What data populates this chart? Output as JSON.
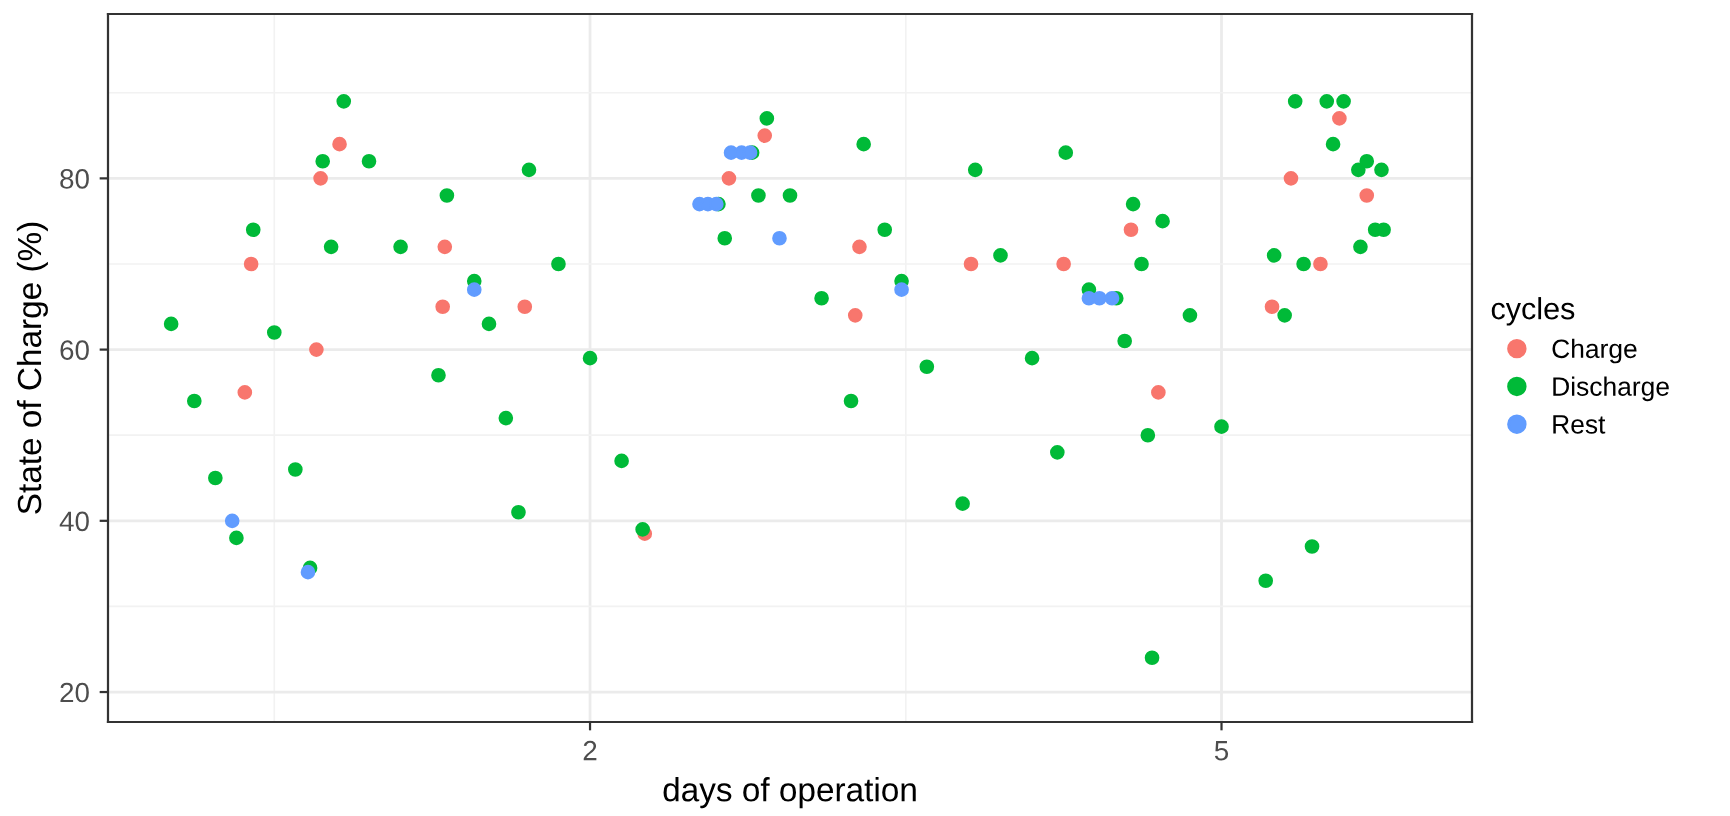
{
  "chart_data": {
    "type": "scatter",
    "xlabel": "days of operation",
    "ylabel": "State of Charge (%)",
    "legend_title": "cycles",
    "legend": "right",
    "grid": true,
    "marker": "circle",
    "xlim": [
      -0.29,
      6.19
    ],
    "xticks": [
      2,
      5
    ],
    "ylim": [
      16.5,
      99.2
    ],
    "yticks": [
      20,
      40,
      60,
      80
    ],
    "series": [
      {
        "name": "Charge",
        "color": "#f8766d",
        "x": [
          0.36,
          0.39,
          0.7,
          0.72,
          0.81,
          1.3,
          1.31,
          1.69,
          2.26,
          2.66,
          2.83,
          3.26,
          3.28,
          3.81,
          4.25,
          4.57,
          4.7,
          5.24,
          5.33,
          5.47,
          5.56,
          5.69
        ],
        "values": [
          55,
          70,
          60,
          80,
          84,
          65,
          72,
          65,
          38.5,
          80,
          85,
          64,
          72,
          70,
          70,
          74,
          55,
          65,
          80,
          70,
          87,
          78
        ]
      },
      {
        "name": "Discharge",
        "color": "#00ba38",
        "x": [
          0.01,
          0.12,
          0.22,
          0.32,
          0.4,
          0.5,
          0.6,
          0.67,
          0.73,
          0.77,
          0.83,
          0.95,
          1.1,
          1.28,
          1.32,
          1.45,
          1.52,
          1.6,
          1.66,
          1.71,
          1.85,
          2.0,
          2.15,
          2.25,
          2.61,
          2.64,
          2.77,
          2.8,
          2.84,
          2.95,
          3.1,
          3.24,
          3.3,
          3.4,
          3.48,
          3.6,
          3.77,
          3.83,
          3.95,
          4.1,
          4.22,
          4.26,
          4.37,
          4.5,
          4.54,
          4.58,
          4.62,
          4.65,
          4.67,
          4.72,
          4.85,
          5.0,
          5.21,
          5.25,
          5.3,
          5.35,
          5.39,
          5.43,
          5.5,
          5.53,
          5.58,
          5.65,
          5.66,
          5.69,
          5.73,
          5.76,
          5.77
        ],
        "values": [
          63,
          54,
          45,
          38,
          74,
          62,
          46,
          34.5,
          82,
          72,
          89,
          82,
          72,
          57,
          78,
          68,
          63,
          52,
          41,
          81,
          70,
          59,
          47,
          39,
          77,
          73,
          83,
          78,
          87,
          78,
          66,
          54,
          84,
          74,
          68,
          58,
          42,
          81,
          71,
          59,
          48,
          83,
          67,
          66,
          61,
          77,
          70,
          50,
          24,
          75,
          64,
          51,
          33,
          71,
          64,
          89,
          70,
          37,
          89,
          84,
          89,
          81,
          72,
          82,
          74,
          81,
          74
        ]
      },
      {
        "name": "Rest",
        "color": "#619cff",
        "x": [
          0.3,
          0.66,
          1.45,
          2.52,
          2.56,
          2.6,
          2.67,
          2.72,
          2.76,
          2.9,
          3.48,
          4.37,
          4.42,
          4.48
        ],
        "values": [
          40,
          34,
          67,
          77,
          77,
          77,
          83,
          83,
          83,
          73,
          67,
          66,
          66,
          66
        ]
      }
    ]
  }
}
